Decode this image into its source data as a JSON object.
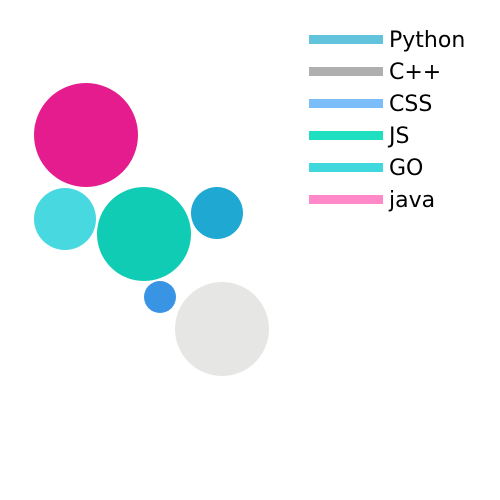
{
  "chart_data": {
    "type": "bubble",
    "title": "",
    "xlabel": "",
    "ylabel": "",
    "legend": {
      "placement": "top-right",
      "entries": [
        {
          "label": "Python",
          "color": "#62c4dc"
        },
        {
          "label": "C++",
          "color": "#afafaf"
        },
        {
          "label": "CSS",
          "color": "#7bbdf8"
        },
        {
          "label": "JS",
          "color": "#1ee0c0"
        },
        {
          "label": "GO",
          "color": "#3ed8dd"
        },
        {
          "label": "java",
          "color": "#ff88c8"
        }
      ]
    },
    "bubbles": [
      {
        "color": "#e41c8e",
        "size": 52
      },
      {
        "color": "#48d8e0",
        "size": 31
      },
      {
        "color": "#10ccb4",
        "size": 47
      },
      {
        "color": "#1ea8d2",
        "size": 26
      },
      {
        "color": "#3a94e4",
        "size": 16
      },
      {
        "color": "#e6e6e4",
        "size": 47
      }
    ]
  }
}
